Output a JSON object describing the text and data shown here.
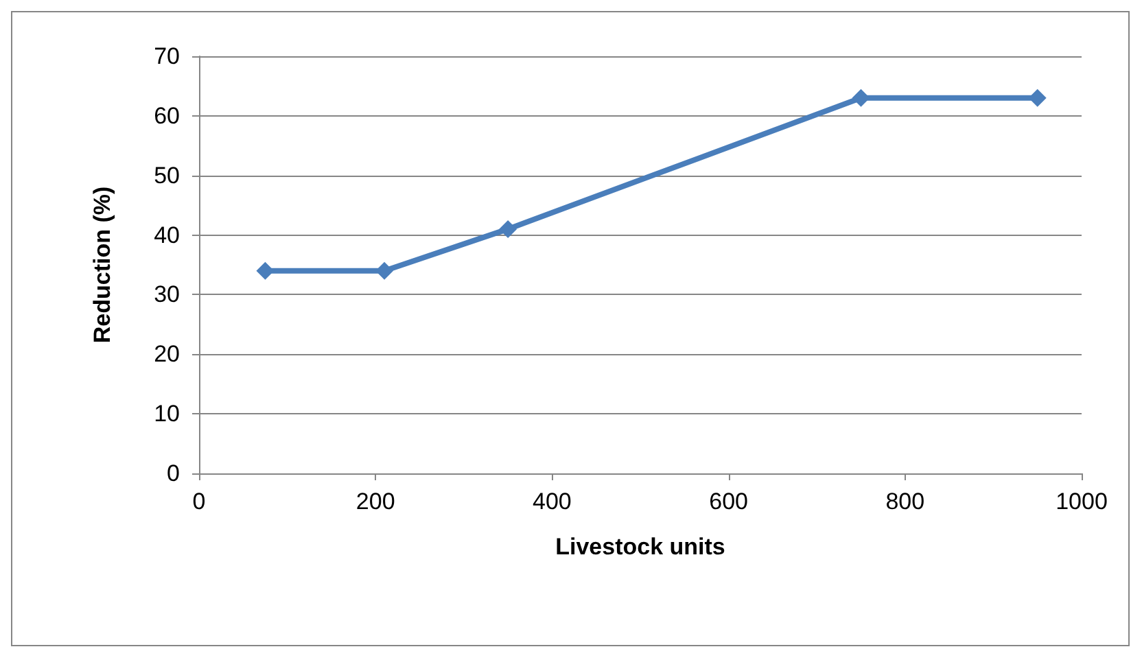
{
  "chart_data": {
    "type": "line",
    "xlabel": "Livestock units",
    "ylabel": "Reduction (%)",
    "x": [
      75,
      210,
      350,
      750,
      950
    ],
    "series": [
      {
        "color": "#4a7ebb",
        "values": [
          34,
          34,
          41,
          63,
          63
        ]
      }
    ],
    "xlim": [
      0,
      1000
    ],
    "xticks": [
      0,
      200,
      400,
      600,
      800,
      1000
    ],
    "ylim": [
      0,
      70
    ],
    "yticks": [
      0,
      10,
      20,
      30,
      40,
      50,
      60,
      70
    ],
    "grid": "y",
    "marker": "diamond",
    "line_style": "solid"
  }
}
